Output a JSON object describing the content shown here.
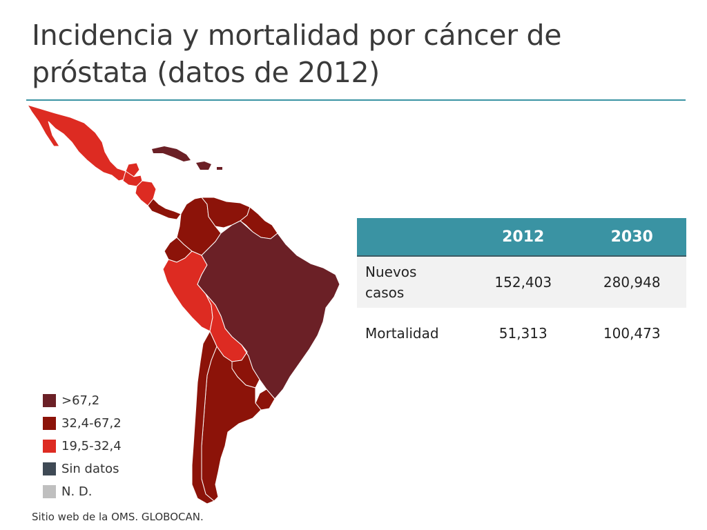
{
  "title": "Incidencia y mortalidad por cáncer de próstata (datos de 2012)",
  "table": {
    "headers": [
      "",
      "2012",
      "2030"
    ],
    "rows": [
      {
        "label": "Nuevos casos",
        "values": [
          "152,403",
          "280,948"
        ]
      },
      {
        "label": "Mortalidad",
        "values": [
          "51,313",
          "100,473"
        ]
      }
    ]
  },
  "legend": [
    {
      "label": ">67,2",
      "color": "#6b2026"
    },
    {
      "label": "32,4-67,2",
      "color": "#8c1309"
    },
    {
      "label": "19,5-32,4",
      "color": "#dd2b22"
    },
    {
      "label": "Sin datos",
      "color": "#3f4a55"
    },
    {
      "label": "N. D.",
      "color": "#bfbfbf"
    }
  ],
  "source": "Sitio web de la OMS. GLOBOCAN.",
  "colors": {
    "accent": "#3a93a3",
    "high": "#6b2026",
    "mid": "#8c1309",
    "low": "#dd2b22"
  },
  "map": {
    "region": "Latin America",
    "countries": [
      {
        "name": "Mexico",
        "category": "19,5-32,4"
      },
      {
        "name": "Guatemala",
        "category": "19,5-32,4"
      },
      {
        "name": "Belize",
        "category": "19,5-32,4"
      },
      {
        "name": "Honduras",
        "category": "19,5-32,4"
      },
      {
        "name": "El Salvador",
        "category": "19,5-32,4"
      },
      {
        "name": "Nicaragua",
        "category": "19,5-32,4"
      },
      {
        "name": "Costa Rica",
        "category": "32,4-67,2"
      },
      {
        "name": "Panama",
        "category": "32,4-67,2"
      },
      {
        "name": "Cuba",
        "category": ">67,2"
      },
      {
        "name": "Dominican Republic",
        "category": ">67,2"
      },
      {
        "name": "Haiti",
        "category": ">67,2"
      },
      {
        "name": "Puerto Rico",
        "category": ">67,2"
      },
      {
        "name": "Colombia",
        "category": "32,4-67,2"
      },
      {
        "name": "Venezuela",
        "category": "32,4-67,2"
      },
      {
        "name": "Guyana",
        "category": "32,4-67,2"
      },
      {
        "name": "Suriname",
        "category": "32,4-67,2"
      },
      {
        "name": "French Guiana",
        "category": "32,4-67,2"
      },
      {
        "name": "Ecuador",
        "category": "32,4-67,2"
      },
      {
        "name": "Peru",
        "category": "19,5-32,4"
      },
      {
        "name": "Brazil",
        "category": ">67,2"
      },
      {
        "name": "Bolivia",
        "category": "19,5-32,4"
      },
      {
        "name": "Paraguay",
        "category": "32,4-67,2"
      },
      {
        "name": "Chile",
        "category": "32,4-67,2"
      },
      {
        "name": "Argentina",
        "category": "32,4-67,2"
      },
      {
        "name": "Uruguay",
        "category": "32,4-67,2"
      }
    ]
  }
}
